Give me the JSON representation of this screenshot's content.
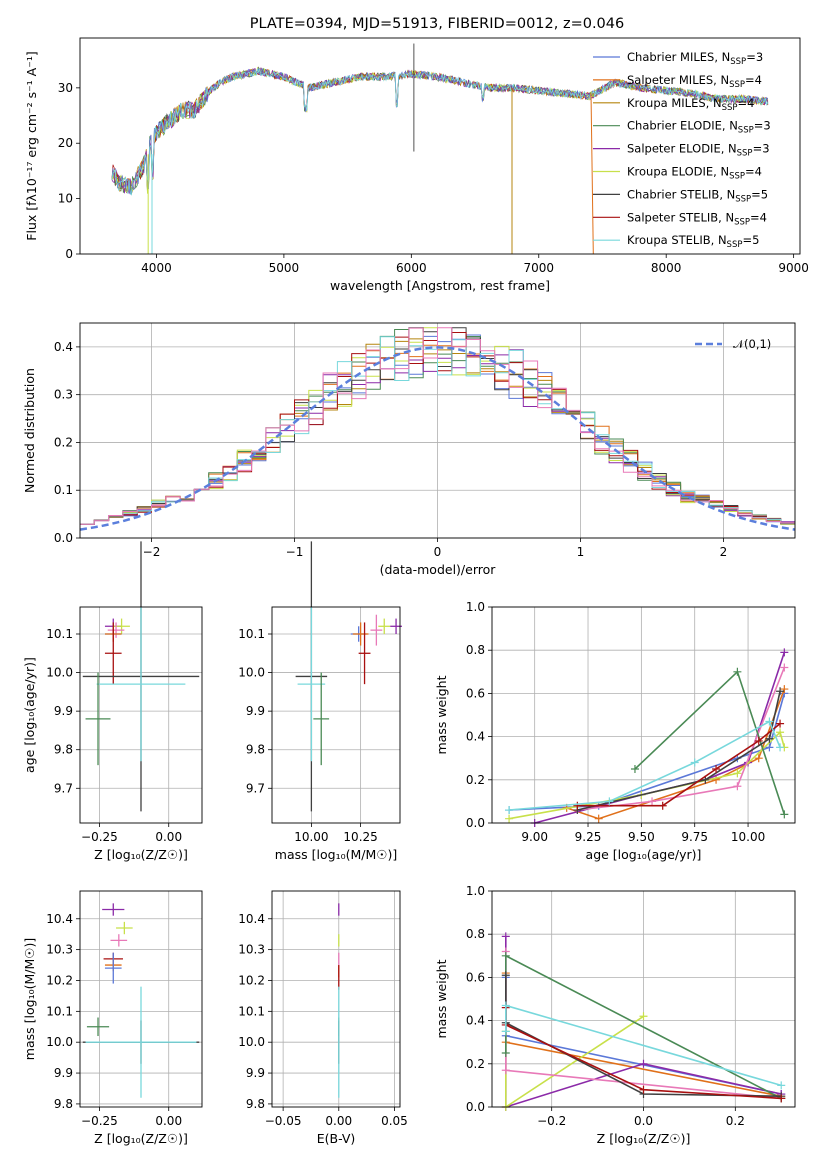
{
  "title": "PLATE=0394, MJD=51913, FIBERID=0012, z=0.046",
  "colors": {
    "Chabrier MILES": "#5b78d8",
    "Salpeter MILES": "#e0701a",
    "Kroupa MILES": "#b5850f",
    "Chabrier ELODIE": "#4a8a55",
    "Salpeter ELODIE": "#8b2aa8",
    "Kroupa ELODIE": "#c8e04a",
    "Chabrier STELIB": "#404040",
    "Salpeter STELIB": "#a81010",
    "Kroupa STELIB": "#78d8dc",
    "extra_pink": "#e879b8",
    "gauss": "#5b7fdc"
  },
  "chart_data": [
    {
      "type": "line",
      "id": "spectrum",
      "title": "PLATE=0394, MJD=51913, FIBERID=0012, z=0.046",
      "xlabel": "wavelength [Angstrom, rest frame]",
      "ylabel": "Flux [fλ10⁻¹⁷ erg cm⁻² s⁻¹ A⁻¹]",
      "xlim": [
        3400,
        9050
      ],
      "ylim": [
        0,
        39
      ],
      "xticks": [
        "4000",
        "5000",
        "6000",
        "7000",
        "8000",
        "9000"
      ],
      "yticks": [
        "0",
        "10",
        "20",
        "30"
      ],
      "grid": false,
      "legend_position": "top-right",
      "legend": [
        "Chabrier MILES, N_SSP=3",
        "Salpeter MILES, N_SSP=4",
        "Kroupa MILES, N_SSP=4",
        "Chabrier ELODIE, N_SSP=3",
        "Salpeter ELODIE, N_SSP=3",
        "Kroupa ELODIE, N_SSP=4",
        "Chabrier STELIB, N_SSP=5",
        "Salpeter STELIB, N_SSP=4",
        "Kroupa STELIB, N_SSP=5"
      ],
      "continuum": [
        [
          3650,
          15
        ],
        [
          3700,
          13
        ],
        [
          3800,
          12
        ],
        [
          3900,
          16
        ],
        [
          3950,
          20
        ],
        [
          4000,
          22
        ],
        [
          4100,
          24
        ],
        [
          4200,
          26
        ],
        [
          4300,
          26
        ],
        [
          4400,
          29
        ],
        [
          4500,
          31
        ],
        [
          4600,
          32
        ],
        [
          4800,
          33
        ],
        [
          5000,
          32
        ],
        [
          5200,
          30
        ],
        [
          5400,
          31
        ],
        [
          5600,
          32
        ],
        [
          5800,
          32
        ],
        [
          6000,
          32.5
        ],
        [
          6200,
          32
        ],
        [
          6400,
          31
        ],
        [
          6600,
          30
        ],
        [
          6800,
          30
        ],
        [
          7000,
          29.5
        ],
        [
          7200,
          29
        ],
        [
          7400,
          28.5
        ],
        [
          7600,
          31
        ],
        [
          7800,
          30
        ],
        [
          8000,
          29.5
        ],
        [
          8200,
          29
        ],
        [
          8400,
          28
        ],
        [
          8600,
          28
        ],
        [
          8800,
          27.5
        ]
      ]
    },
    {
      "type": "line",
      "id": "residuals",
      "xlabel": "(data-model)/error",
      "ylabel": "Normed distribution",
      "xlim": [
        -2.5,
        2.5
      ],
      "ylim": [
        0,
        0.45
      ],
      "xticks": [
        "-2",
        "-1",
        "0",
        "1",
        "2"
      ],
      "yticks": [
        "0.0",
        "0.1",
        "0.2",
        "0.3",
        "0.4"
      ],
      "grid": true,
      "legend_position": "top-right",
      "legend": [
        "𝒩(0,1)"
      ],
      "gaussian": {
        "mean": 0,
        "sigma": 1
      }
    },
    {
      "type": "scatter",
      "id": "age-vs-Z",
      "xlabel": "Z [log₁₀(Z/Z☉)]",
      "ylabel": "age  [log₁₀(age/yr)]",
      "xlim": [
        -0.32,
        0.12
      ],
      "ylim": [
        9.61,
        10.17
      ],
      "xticks": [
        "-0.25",
        "0.00"
      ],
      "yticks": [
        "9.7",
        "9.8",
        "9.9",
        "10.0",
        "10.1"
      ],
      "grid": true,
      "points": [
        {
          "x": -0.2,
          "y": 10.12,
          "xerr": 0.03,
          "yerr": 0.02,
          "c": "#8b2aa8"
        },
        {
          "x": -0.17,
          "y": 10.12,
          "xerr": 0.03,
          "yerr": 0.02,
          "c": "#c8e04a"
        },
        {
          "x": -0.19,
          "y": 10.11,
          "xerr": 0.03,
          "yerr": 0.02,
          "c": "#e879b8"
        },
        {
          "x": -0.2,
          "y": 10.1,
          "xerr": 0.03,
          "yerr": 0.02,
          "c": "#5b78d8"
        },
        {
          "x": -0.2,
          "y": 10.1,
          "xerr": 0.03,
          "yerr": 0.02,
          "c": "#e0701a"
        },
        {
          "x": -0.2,
          "y": 10.05,
          "xerr": 0.03,
          "yerr": 0.08,
          "c": "#a81010"
        },
        {
          "x": -0.1,
          "y": 9.99,
          "xerr": 0.21,
          "yerr": 0.35,
          "c": "#404040"
        },
        {
          "x": -0.1,
          "y": 9.97,
          "xerr": 0.16,
          "yerr": 0.2,
          "c": "#78d8dc"
        },
        {
          "x": -0.255,
          "y": 9.88,
          "xerr": 0.045,
          "yerr": 0.12,
          "c": "#4a8a55"
        }
      ]
    },
    {
      "type": "scatter",
      "id": "age-vs-mass",
      "xlabel": "mass [log₁₀(M/M☉)]",
      "ylabel": "",
      "xlim": [
        9.8,
        10.45
      ],
      "ylim": [
        9.61,
        10.17
      ],
      "xticks": [
        "10.00",
        "10.25"
      ],
      "yticks": [
        "9.7",
        "9.8",
        "9.9",
        "10.0",
        "10.1"
      ],
      "grid": true,
      "points": [
        {
          "x": 10.43,
          "y": 10.12,
          "xerr": 0.03,
          "yerr": 0.02,
          "c": "#8b2aa8"
        },
        {
          "x": 10.37,
          "y": 10.12,
          "xerr": 0.03,
          "yerr": 0.02,
          "c": "#c8e04a"
        },
        {
          "x": 10.33,
          "y": 10.11,
          "xerr": 0.03,
          "yerr": 0.04,
          "c": "#e879b8"
        },
        {
          "x": 10.24,
          "y": 10.1,
          "xerr": 0.04,
          "yerr": 0.02,
          "c": "#5b78d8"
        },
        {
          "x": 10.25,
          "y": 10.1,
          "xerr": 0.04,
          "yerr": 0.03,
          "c": "#e0701a"
        },
        {
          "x": 10.27,
          "y": 10.05,
          "xerr": 0.03,
          "yerr": 0.08,
          "c": "#a81010"
        },
        {
          "x": 10.0,
          "y": 9.99,
          "xerr": 0.08,
          "yerr": 0.35,
          "c": "#404040"
        },
        {
          "x": 10.0,
          "y": 9.97,
          "xerr": 0.07,
          "yerr": 0.2,
          "c": "#78d8dc"
        },
        {
          "x": 10.05,
          "y": 9.88,
          "xerr": 0.04,
          "yerr": 0.12,
          "c": "#4a8a55"
        }
      ]
    },
    {
      "type": "line",
      "id": "mass-weight-vs-age",
      "xlabel": "age  [log₁₀(age/yr)]",
      "ylabel": "mass weight",
      "xlim": [
        8.8,
        10.22
      ],
      "ylim": [
        0,
        1.0
      ],
      "xticks": [
        "9.00",
        "9.25",
        "9.50",
        "9.75",
        "10.00"
      ],
      "yticks": [
        "0.0",
        "0.2",
        "0.4",
        "0.6",
        "0.8",
        "1.0"
      ],
      "grid": true,
      "series": [
        {
          "c": "#5b78d8",
          "x": [
            8.88,
            9.3,
            9.95,
            10.1,
            10.17
          ],
          "y": [
            0.06,
            0.08,
            0.3,
            0.35,
            0.6
          ]
        },
        {
          "c": "#e0701a",
          "x": [
            9.15,
            9.3,
            9.85,
            10.05,
            10.17
          ],
          "y": [
            0.07,
            0.02,
            0.2,
            0.3,
            0.62
          ]
        },
        {
          "c": "#8b2aa8",
          "x": [
            9.0,
            9.5,
            9.8,
            10.0,
            10.17
          ],
          "y": [
            0.0,
            0.13,
            0.2,
            0.28,
            0.79
          ]
        },
        {
          "c": "#c8e04a",
          "x": [
            8.88,
            9.5,
            9.95,
            10.15,
            10.17
          ],
          "y": [
            0.02,
            0.13,
            0.23,
            0.42,
            0.35
          ]
        },
        {
          "c": "#e879b8",
          "x": [
            9.2,
            9.55,
            9.95,
            10.17
          ],
          "y": [
            0.06,
            0.1,
            0.17,
            0.72
          ]
        },
        {
          "c": "#4a8a55",
          "x": [
            9.47,
            9.95,
            10.17
          ],
          "y": [
            0.25,
            0.7,
            0.04
          ]
        },
        {
          "c": "#404040",
          "x": [
            9.2,
            9.8,
            10.1,
            10.15
          ],
          "y": [
            0.06,
            0.2,
            0.39,
            0.61
          ]
        },
        {
          "c": "#a81010",
          "x": [
            9.2,
            9.6,
            9.85,
            10.05,
            10.15
          ],
          "y": [
            0.08,
            0.08,
            0.25,
            0.38,
            0.46
          ]
        },
        {
          "c": "#78d8dc",
          "x": [
            8.88,
            9.35,
            9.75,
            10.1,
            10.15
          ],
          "y": [
            0.06,
            0.1,
            0.28,
            0.47,
            0.35
          ]
        }
      ]
    },
    {
      "type": "scatter",
      "id": "mass-vs-Z",
      "xlabel": "Z [log₁₀(Z/Z☉)]",
      "ylabel": "mass [log₁₀(M/M☉)]",
      "xlim": [
        -0.32,
        0.12
      ],
      "ylim": [
        9.79,
        10.49
      ],
      "xticks": [
        "-0.25",
        "0.00"
      ],
      "yticks": [
        "9.8",
        "9.9",
        "10.0",
        "10.1",
        "10.2",
        "10.3",
        "10.4"
      ],
      "grid": true,
      "points": [
        {
          "x": -0.2,
          "y": 10.43,
          "xerr": 0.04,
          "yerr": 0.02,
          "c": "#8b2aa8"
        },
        {
          "x": -0.16,
          "y": 10.37,
          "xerr": 0.03,
          "yerr": 0.02,
          "c": "#c8e04a"
        },
        {
          "x": -0.18,
          "y": 10.33,
          "xerr": 0.03,
          "yerr": 0.02,
          "c": "#e879b8"
        },
        {
          "x": -0.2,
          "y": 10.27,
          "xerr": 0.035,
          "yerr": 0.02,
          "c": "#a81010"
        },
        {
          "x": -0.2,
          "y": 10.25,
          "xerr": 0.03,
          "yerr": 0.02,
          "c": "#e0701a"
        },
        {
          "x": -0.2,
          "y": 10.24,
          "xerr": 0.03,
          "yerr": 0.05,
          "c": "#5b78d8"
        },
        {
          "x": -0.255,
          "y": 10.05,
          "xerr": 0.04,
          "yerr": 0.03,
          "c": "#4a8a55"
        },
        {
          "x": -0.1,
          "y": 10.0,
          "xerr": 0.21,
          "yerr": 0.07,
          "c": "#404040"
        },
        {
          "x": -0.1,
          "y": 10.0,
          "xerr": 0.2,
          "yerr": 0.18,
          "c": "#78d8dc"
        }
      ]
    },
    {
      "type": "scatter",
      "id": "mass-vs-EBV",
      "xlabel": "E(B-V)",
      "ylabel": "",
      "xlim": [
        -0.06,
        0.055
      ],
      "ylim": [
        9.79,
        10.49
      ],
      "xticks": [
        "-0.05",
        "0.00",
        "0.05"
      ],
      "yticks": [
        "9.8",
        "9.9",
        "10.0",
        "10.1",
        "10.2",
        "10.3",
        "10.4"
      ],
      "grid": true,
      "points": [
        {
          "x": 0.0,
          "y": 10.43,
          "xerr": 0,
          "yerr": 0.02,
          "c": "#8b2aa8"
        },
        {
          "x": 0.0,
          "y": 10.33,
          "xerr": 0,
          "yerr": 0.02,
          "c": "#c8e04a"
        },
        {
          "x": 0.0,
          "y": 10.27,
          "xerr": 0,
          "yerr": 0.02,
          "c": "#e879b8"
        },
        {
          "x": 0.0,
          "y": 10.23,
          "xerr": 0,
          "yerr": 0.02,
          "c": "#e0701a"
        },
        {
          "x": 0.0,
          "y": 10.21,
          "xerr": 0,
          "yerr": 0.04,
          "c": "#a81010"
        },
        {
          "x": 0.0,
          "y": 10.05,
          "xerr": 0,
          "yerr": 0.03,
          "c": "#4a8a55"
        },
        {
          "x": 0.0,
          "y": 10.0,
          "xerr": 0,
          "yerr": 0.07,
          "c": "#404040"
        },
        {
          "x": 0.0,
          "y": 10.0,
          "xerr": 0,
          "yerr": 0.18,
          "c": "#78d8dc"
        }
      ]
    },
    {
      "type": "line",
      "id": "mass-weight-vs-Z",
      "xlabel": "Z [log₁₀(Z/Z☉)]",
      "ylabel": "mass weight",
      "xlim": [
        -0.33,
        0.33
      ],
      "ylim": [
        0,
        1.0
      ],
      "xticks": [
        "-0.2",
        "0.0",
        "0.2"
      ],
      "yticks": [
        "0.0",
        "0.2",
        "0.4",
        "0.6",
        "0.8",
        "1.0"
      ],
      "grid": true,
      "series": [
        {
          "c": "#5b78d8",
          "x": [
            -0.3,
            -0.3,
            0.3
          ],
          "y": [
            0.6,
            0.33,
            0.06
          ]
        },
        {
          "c": "#e0701a",
          "x": [
            -0.3,
            -0.3,
            0.3
          ],
          "y": [
            0.62,
            0.3,
            0.05
          ]
        },
        {
          "c": "#8b2aa8",
          "x": [
            -0.3,
            -0.3,
            0.0,
            0.3
          ],
          "y": [
            0.79,
            0.0,
            0.2,
            0.06
          ]
        },
        {
          "c": "#c8e04a",
          "x": [
            -0.3,
            -0.3,
            0.0
          ],
          "y": [
            0.35,
            0.0,
            0.42
          ]
        },
        {
          "c": "#e879b8",
          "x": [
            -0.3,
            -0.3,
            0.3
          ],
          "y": [
            0.72,
            0.17,
            0.04
          ]
        },
        {
          "c": "#4a8a55",
          "x": [
            -0.3,
            -0.3,
            0.3
          ],
          "y": [
            0.25,
            0.7,
            0.04
          ]
        },
        {
          "c": "#404040",
          "x": [
            -0.3,
            -0.3,
            0.0,
            0.3
          ],
          "y": [
            0.61,
            0.39,
            0.06,
            0.05
          ]
        },
        {
          "c": "#a81010",
          "x": [
            -0.3,
            -0.3,
            0.0,
            0.3
          ],
          "y": [
            0.46,
            0.38,
            0.08,
            0.04
          ]
        },
        {
          "c": "#78d8dc",
          "x": [
            -0.3,
            -0.3,
            0.3
          ],
          "y": [
            0.35,
            0.47,
            0.1
          ]
        }
      ]
    }
  ]
}
